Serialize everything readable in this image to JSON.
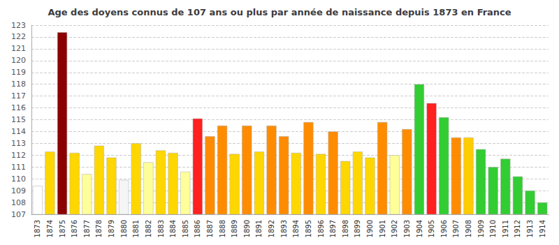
{
  "chart_data": {
    "type": "bar",
    "title": "Age des doyens connus de 107 ans ou plus par année de naissance depuis 1873 en France",
    "categories": [
      "1873",
      "1874",
      "1875",
      "1876",
      "1877",
      "1878",
      "1879",
      "1880",
      "1881",
      "1882",
      "1883",
      "1884",
      "1885",
      "1886",
      "1887",
      "1888",
      "1889",
      "1890",
      "1891",
      "1892",
      "1893",
      "1894",
      "1895",
      "1896",
      "1897",
      "1898",
      "1899",
      "1900",
      "1901",
      "1902",
      "1903",
      "1904",
      "1905",
      "1906",
      "1907",
      "1908",
      "1909",
      "1910",
      "1911",
      "1912",
      "1913",
      "1914"
    ],
    "values": [
      109.4,
      112.3,
      122.4,
      112.2,
      110.4,
      112.8,
      111.8,
      109.9,
      113.0,
      111.4,
      112.4,
      112.2,
      110.6,
      115.1,
      113.6,
      114.5,
      112.1,
      114.5,
      112.3,
      114.5,
      113.6,
      112.2,
      114.8,
      112.1,
      114.0,
      111.5,
      112.3,
      111.8,
      114.8,
      112.0,
      114.2,
      118.0,
      116.4,
      115.2,
      113.5,
      113.5,
      112.5,
      111.0,
      111.7,
      110.2,
      109.0,
      108.0
    ],
    "colors": [
      "#ffffff",
      "#ffd700",
      "#8b0000",
      "#ffd700",
      "#ffff99",
      "#ffd700",
      "#ffd700",
      "#f5f5f5",
      "#ffd700",
      "#ffff99",
      "#ffd700",
      "#ffd700",
      "#ffff99",
      "#ff2020",
      "#ff8c00",
      "#ff8c00",
      "#ffd700",
      "#ff8c00",
      "#ffd700",
      "#ff8c00",
      "#ff8c00",
      "#ffd700",
      "#ff8c00",
      "#ffd700",
      "#ff8c00",
      "#ffd700",
      "#ffd700",
      "#ffd700",
      "#ff8c00",
      "#ffff99",
      "#ff8c00",
      "#32cd32",
      "#ff2020",
      "#32cd32",
      "#ff8c00",
      "#ffcc00",
      "#32cd32",
      "#32cd32",
      "#32cd32",
      "#32cd32",
      "#32cd32",
      "#32cd32"
    ],
    "ylim": [
      107,
      123
    ],
    "yticks": [
      107,
      108,
      109,
      110,
      111,
      112,
      113,
      114,
      115,
      116,
      117,
      118,
      119,
      120,
      121,
      122,
      123
    ],
    "grid": true
  }
}
